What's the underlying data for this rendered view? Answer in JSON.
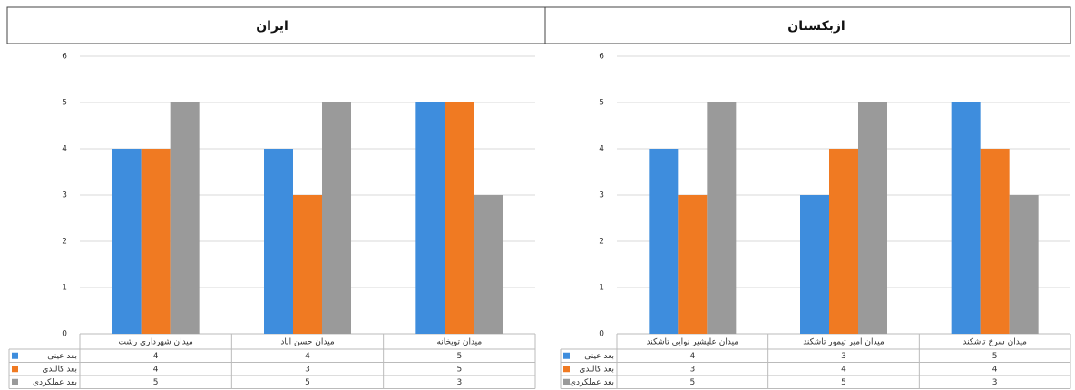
{
  "chart_data": [
    {
      "type": "bar",
      "title": "ایران",
      "categories": [
        "میدان شهرداری رشت",
        "میدان حسن اباد",
        "میدان توپخانه"
      ],
      "series": [
        {
          "name": "بعد عینی",
          "color": "#3e8ddd",
          "values": [
            4,
            4,
            5
          ]
        },
        {
          "name": "بعد کالبدی",
          "color": "#f07a22",
          "values": [
            4,
            3,
            5
          ]
        },
        {
          "name": "بعد عملکردی",
          "color": "#9a9a9a",
          "values": [
            5,
            5,
            3
          ]
        }
      ],
      "ylim": [
        0,
        6
      ],
      "yticks": [
        0,
        1,
        2,
        3,
        4,
        5,
        6
      ],
      "grid": true
    },
    {
      "type": "bar",
      "title": "ازبکستان",
      "categories": [
        "میدان علیشیر نوایی تاشکند",
        "میدان امیر تیمور تاشکند",
        "میدان سرخ تاشکند"
      ],
      "series": [
        {
          "name": "بعد عینی",
          "color": "#3e8ddd",
          "values": [
            4,
            3,
            5
          ]
        },
        {
          "name": "بعد کالبدی",
          "color": "#f07a22",
          "values": [
            3,
            4,
            4
          ]
        },
        {
          "name": "بعد عملکردی",
          "color": "#9a9a9a",
          "values": [
            5,
            5,
            3
          ]
        }
      ],
      "ylim": [
        0,
        6
      ],
      "yticks": [
        0,
        1,
        2,
        3,
        4,
        5,
        6
      ],
      "grid": true
    }
  ]
}
